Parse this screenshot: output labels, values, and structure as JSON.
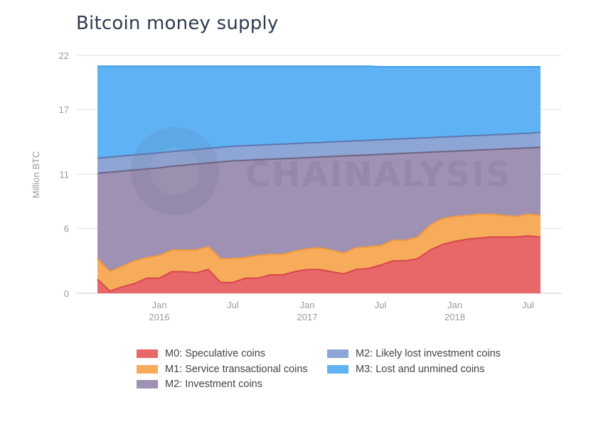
{
  "chart_data": {
    "type": "area",
    "title": "Bitcoin money supply",
    "ylabel": "Million BTC",
    "xlabel": "",
    "ylim": [
      0,
      22
    ],
    "yticks": [
      0,
      6,
      11,
      17,
      22
    ],
    "xticks": [
      {
        "date": "2016-01-01",
        "line1": "Jan",
        "line2": "2016"
      },
      {
        "date": "2016-07-01",
        "line1": "Jul",
        "line2": ""
      },
      {
        "date": "2017-01-01",
        "line1": "Jan",
        "line2": "2017"
      },
      {
        "date": "2017-07-01",
        "line1": "Jul",
        "line2": ""
      },
      {
        "date": "2018-01-01",
        "line1": "Jan",
        "line2": "2018"
      },
      {
        "date": "2018-07-01",
        "line1": "Jul",
        "line2": ""
      }
    ],
    "x": [
      "2015-08-01",
      "2015-09-01",
      "2015-10-01",
      "2015-11-01",
      "2015-12-01",
      "2016-01-01",
      "2016-02-01",
      "2016-03-01",
      "2016-04-01",
      "2016-05-01",
      "2016-06-01",
      "2016-07-01",
      "2016-08-01",
      "2016-09-01",
      "2016-10-01",
      "2016-11-01",
      "2016-12-01",
      "2017-01-01",
      "2017-02-01",
      "2017-03-01",
      "2017-04-01",
      "2017-05-01",
      "2017-06-01",
      "2017-07-01",
      "2017-08-01",
      "2017-09-01",
      "2017-10-01",
      "2017-11-01",
      "2017-12-01",
      "2018-01-01",
      "2018-02-01",
      "2018-03-01",
      "2018-04-01",
      "2018-05-01",
      "2018-06-01",
      "2018-07-01",
      "2018-08-01"
    ],
    "grid": true,
    "legend_position": "bottom",
    "series": [
      {
        "name": "M0: Speculative coins",
        "color": "#e8686a",
        "line_color": "#d8464a",
        "values": [
          1.3,
          0.2,
          0.6,
          0.9,
          1.4,
          1.4,
          2.0,
          2.0,
          1.9,
          2.2,
          1.0,
          1.0,
          1.4,
          1.4,
          1.7,
          1.7,
          2.0,
          2.2,
          2.2,
          2.0,
          1.8,
          2.2,
          2.3,
          2.6,
          3.0,
          3.0,
          3.2,
          4.0,
          4.5,
          4.8,
          5.0,
          5.1,
          5.2,
          5.2,
          5.2,
          5.3,
          5.2
        ]
      },
      {
        "name": "M1: Service transactional coins",
        "color": "#f6ac5b",
        "line_color": "#f09a3e",
        "values": [
          3.2,
          2.0,
          2.5,
          3.0,
          3.3,
          3.5,
          4.0,
          4.0,
          4.0,
          4.3,
          3.2,
          3.2,
          3.3,
          3.5,
          3.6,
          3.6,
          3.9,
          4.1,
          4.2,
          4.0,
          3.7,
          4.2,
          4.3,
          4.4,
          4.9,
          4.9,
          5.2,
          6.3,
          6.9,
          7.1,
          7.2,
          7.3,
          7.3,
          7.2,
          7.1,
          7.3,
          7.2
        ]
      },
      {
        "name": "M2: Investment coins",
        "color": "#9e91b4",
        "line_color": "#6e6484",
        "values": [
          11.1,
          11.2,
          11.3,
          11.4,
          11.5,
          11.6,
          11.75,
          11.85,
          11.95,
          12.05,
          12.15,
          12.25,
          12.3,
          12.35,
          12.4,
          12.45,
          12.5,
          12.55,
          12.6,
          12.65,
          12.7,
          12.75,
          12.8,
          12.85,
          12.9,
          12.95,
          13.0,
          13.05,
          13.1,
          13.15,
          13.2,
          13.25,
          13.3,
          13.35,
          13.4,
          13.45,
          13.5
        ]
      },
      {
        "name": "M2: Likely lost investment coins",
        "color": "#8da6d6",
        "line_color": "#5c78b0",
        "values": [
          12.5,
          12.6,
          12.7,
          12.8,
          12.9,
          13.0,
          13.1,
          13.2,
          13.3,
          13.4,
          13.5,
          13.6,
          13.65,
          13.7,
          13.75,
          13.8,
          13.85,
          13.9,
          13.95,
          14.0,
          14.05,
          14.1,
          14.15,
          14.2,
          14.25,
          14.3,
          14.35,
          14.4,
          14.45,
          14.5,
          14.55,
          14.6,
          14.65,
          14.7,
          14.75,
          14.8,
          14.9
        ]
      },
      {
        "name": "M3: Lost and unmined coins",
        "color": "#5fb3f5",
        "line_color": "#3f9de8",
        "values": [
          21.0,
          21.0,
          21.0,
          21.0,
          21.0,
          21.0,
          21.0,
          21.0,
          21.0,
          21.0,
          21.0,
          21.0,
          21.0,
          21.0,
          21.0,
          21.0,
          21.0,
          21.0,
          21.0,
          21.0,
          21.0,
          21.0,
          21.0,
          20.95,
          20.95,
          20.95,
          20.95,
          20.95,
          20.95,
          20.95,
          20.95,
          20.95,
          20.95,
          20.95,
          20.95,
          20.95,
          20.95
        ]
      }
    ],
    "watermark": "CHAINALYSIS"
  }
}
